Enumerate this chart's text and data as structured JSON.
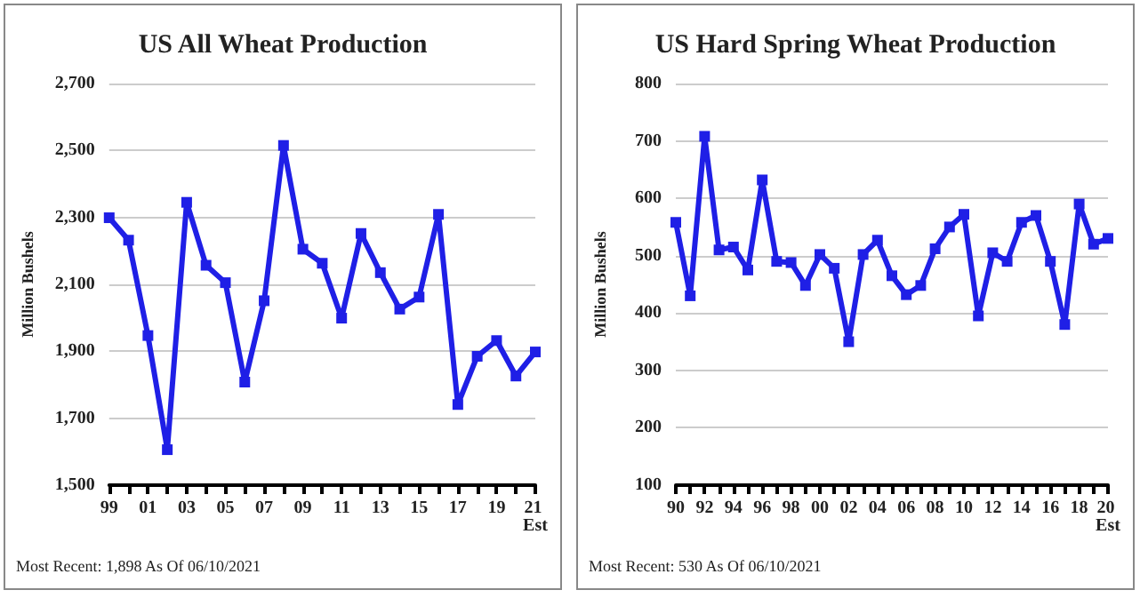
{
  "chart_data": [
    {
      "type": "line",
      "title": "US All Wheat Production",
      "ylabel": "Million Bushels",
      "categories": [
        "99",
        null,
        "01",
        null,
        "03",
        null,
        "05",
        null,
        "07",
        null,
        "09",
        null,
        "11",
        null,
        "13",
        null,
        "15",
        null,
        "17",
        null,
        "19",
        null,
        "21 Est"
      ],
      "series": [
        {
          "color": "#1f1fe6",
          "values": [
            2299,
            2232,
            1947,
            1606,
            2345,
            2157,
            2105,
            1808,
            2051,
            2515,
            2205,
            2163,
            1999,
            2252,
            2135,
            2026,
            2062,
            2309,
            1741,
            1885,
            1932,
            1826,
            1898
          ]
        }
      ],
      "ylim": [
        1500,
        2700
      ],
      "yticks": [
        {
          "value": 1500,
          "label": "1,500"
        },
        {
          "value": 1700,
          "label": "1,700"
        },
        {
          "value": 1900,
          "label": "1,900"
        },
        {
          "value": 2100,
          "label": "2,100"
        },
        {
          "value": 2300,
          "label": "2,300"
        },
        {
          "value": 2500,
          "label": "2,500"
        },
        {
          "value": 2700,
          "label": "2,700"
        }
      ],
      "grid": "y",
      "marker": "square",
      "annotations": [
        "Most Recent: 1,898 As Of 06/10/2021"
      ]
    },
    {
      "type": "line",
      "title": "US Hard Spring Wheat Production",
      "ylabel": "Million Bushels",
      "categories": [
        "90",
        null,
        "92",
        null,
        "94",
        null,
        "96",
        null,
        "98",
        null,
        "00",
        null,
        "02",
        null,
        "04",
        null,
        "06",
        null,
        "08",
        null,
        "10",
        null,
        "12",
        null,
        "14",
        null,
        "16",
        null,
        "18",
        null,
        "20 Est"
      ],
      "series": [
        {
          "color": "#1f1fe6",
          "values": [
            558,
            430,
            708,
            510,
            515,
            475,
            632,
            490,
            488,
            448,
            502,
            478,
            350,
            502,
            527,
            465,
            432,
            448,
            512,
            550,
            572,
            395,
            505,
            490,
            558,
            570,
            490,
            380,
            590,
            520,
            530
          ]
        }
      ],
      "ylim": [
        100,
        800
      ],
      "yticks": [
        100,
        200,
        300,
        400,
        500,
        600,
        700,
        800
      ],
      "grid": "y",
      "marker": "square",
      "annotations": [
        "Most Recent: 530 As Of 06/10/2021"
      ]
    }
  ]
}
